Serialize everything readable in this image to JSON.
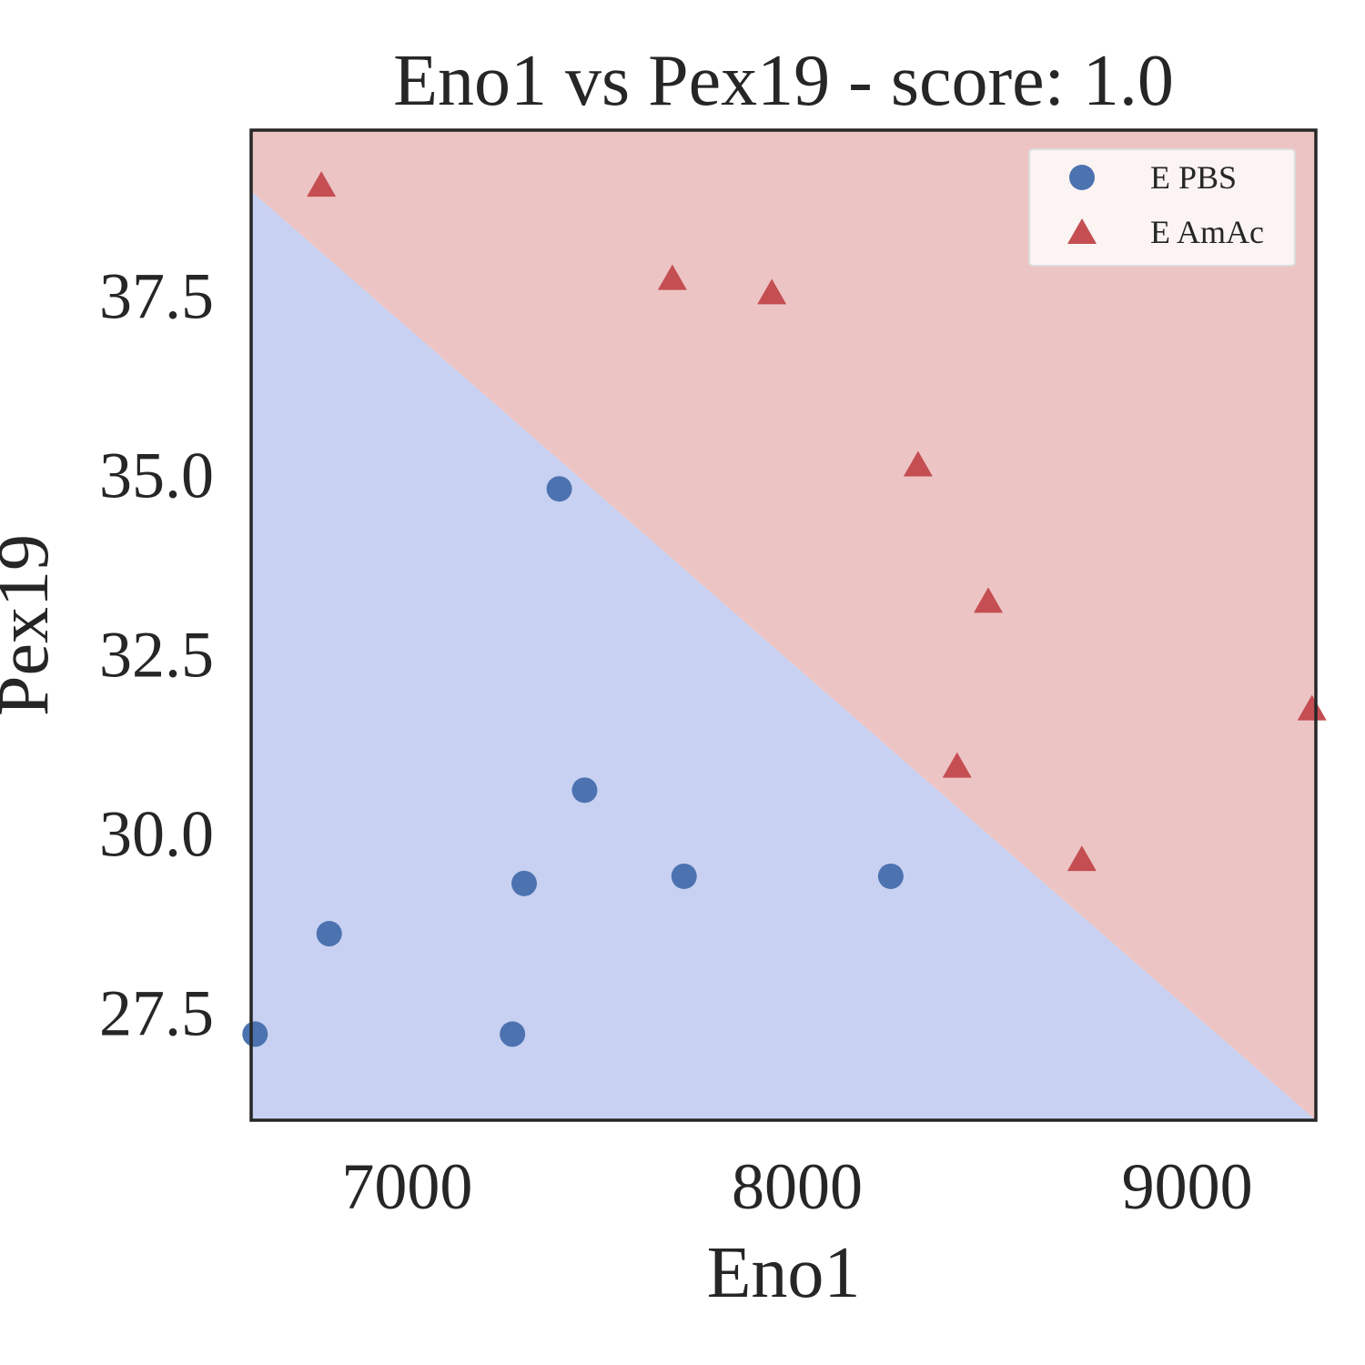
{
  "chart_data": {
    "type": "scatter",
    "title": "Eno1 vs Pex19 - score: 1.0",
    "xlabel": "Eno1",
    "ylabel": "Pex19",
    "xlim": [
      6600,
      9330
    ],
    "ylim": [
      26.0,
      39.8
    ],
    "xticks": [
      7000,
      8000,
      9000
    ],
    "xtick_labels": [
      "7000",
      "8000",
      "9000"
    ],
    "yticks": [
      27.5,
      30.0,
      32.5,
      35.0,
      37.5
    ],
    "ytick_labels": [
      "27.5",
      "30.0",
      "32.5",
      "35.0",
      "37.5"
    ],
    "grid": false,
    "legend_position": "top-right",
    "decision_boundary": {
      "points": [
        [
          6600,
          38.95
        ],
        [
          9330,
          26.0
        ]
      ],
      "region_colors": {
        "E PBS": "#c8d1f1",
        "E AmAc": "#edc4c4"
      }
    },
    "series": [
      {
        "name": "E PBS",
        "marker": "circle",
        "color": "#4c72b0",
        "points": [
          [
            6610,
            27.2
          ],
          [
            6800,
            28.6
          ],
          [
            7270,
            27.2
          ],
          [
            7300,
            29.3
          ],
          [
            7390,
            34.8
          ],
          [
            7455,
            30.6
          ],
          [
            7710,
            29.4
          ],
          [
            8240,
            29.4
          ]
        ]
      },
      {
        "name": "E AmAc",
        "marker": "triangle",
        "color": "#c44e52",
        "points": [
          [
            6780,
            39.0
          ],
          [
            7680,
            37.7
          ],
          [
            7935,
            37.5
          ],
          [
            8310,
            35.1
          ],
          [
            8410,
            30.9
          ],
          [
            8490,
            33.2
          ],
          [
            8730,
            29.6
          ],
          [
            9320,
            31.7
          ]
        ]
      }
    ]
  }
}
